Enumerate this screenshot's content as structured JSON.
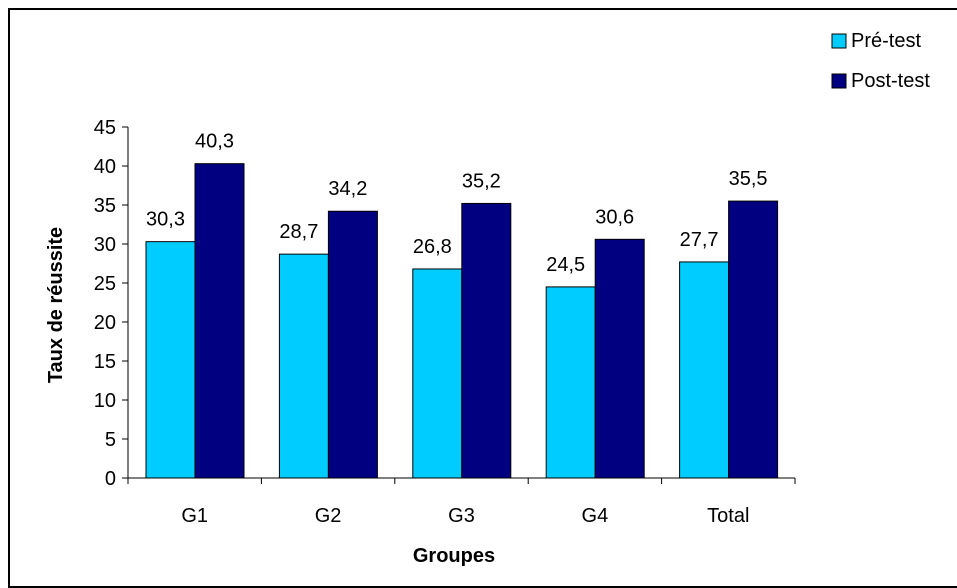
{
  "chart_data": {
    "type": "bar",
    "categories": [
      "G1",
      "G2",
      "G3",
      "G4",
      "Total"
    ],
    "series": [
      {
        "name": "Pré-test",
        "values": [
          30.3,
          28.7,
          26.8,
          24.5,
          27.7
        ],
        "color": "#00ccff"
      },
      {
        "name": "Post-test",
        "values": [
          40.3,
          34.2,
          35.2,
          30.6,
          35.5
        ],
        "color": "#000080"
      }
    ],
    "data_labels": [
      [
        "30,3",
        "28,7",
        "26,8",
        "24,5",
        "27,7"
      ],
      [
        "40,3",
        "34,2",
        "35,2",
        "30,6",
        "35,5"
      ]
    ],
    "xlabel": "Groupes",
    "ylabel": "Taux de réussite",
    "ylim": [
      0,
      45
    ],
    "yticks": [
      0,
      5,
      10,
      15,
      20,
      25,
      30,
      35,
      40,
      45
    ],
    "grid": false,
    "legend_position": "top-right",
    "bar_outline_color": "#000000"
  }
}
